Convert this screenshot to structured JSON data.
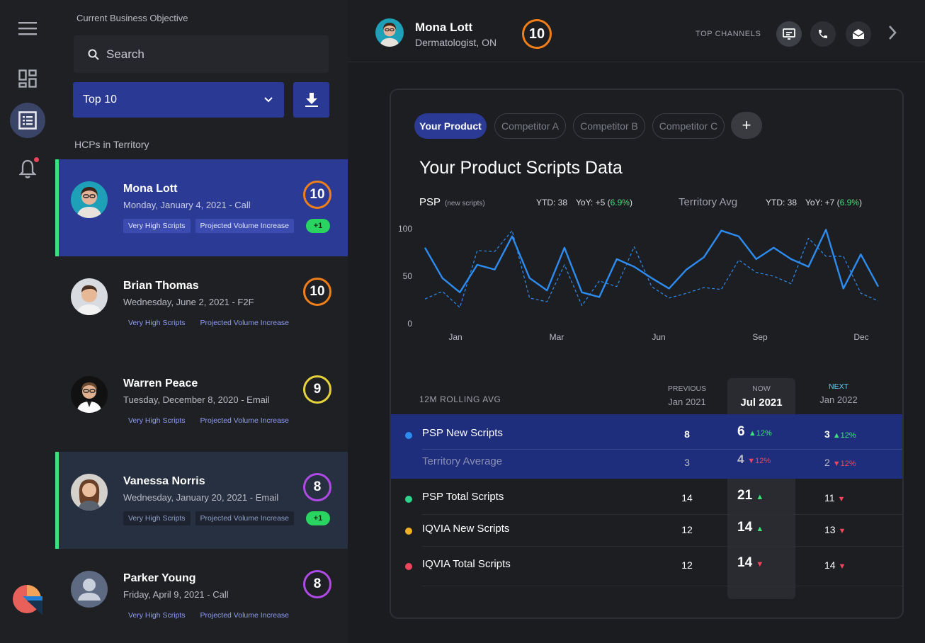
{
  "rail": {
    "icons": [
      "menu-icon",
      "dashboard-icon",
      "list-icon",
      "bell-icon"
    ]
  },
  "list_panel": {
    "objective_label": "Current Business Objective",
    "search_placeholder": "Search",
    "filter_value": "Top 10",
    "section_title": "HCPs in Territory",
    "hcps": [
      {
        "name": "Mona Lott",
        "detail": "Monday, January 4, 2021 - Call",
        "score": "10",
        "score_color": "#f07f1a",
        "tag1": "Very High Scripts",
        "tag2": "Projected Volume Increase",
        "delta": "+1",
        "state": "selected"
      },
      {
        "name": "Brian Thomas",
        "detail": "Wednesday, June 2, 2021 - F2F",
        "score": "10",
        "score_color": "#f07f1a",
        "tag1": "Very High Scripts",
        "tag2": "Projected Volume Increase",
        "delta": "",
        "state": "normal"
      },
      {
        "name": "Warren Peace",
        "detail": "Tuesday, December 8, 2020 - Email",
        "score": "9",
        "score_color": "#e6d23c",
        "tag1": "Very High Scripts",
        "tag2": "Projected Volume Increase",
        "delta": "",
        "state": "normal"
      },
      {
        "name": "Vanessa Norris",
        "detail": "Wednesday, January 20, 2021 - Email",
        "score": "8",
        "score_color": "#b04ae6",
        "tag1": "Very High Scripts",
        "tag2": "Projected Volume Increase",
        "delta": "+1",
        "state": "highlight"
      },
      {
        "name": "Parker Young",
        "detail": "Friday, April 9, 2021 - Call",
        "score": "8",
        "score_color": "#b04ae6",
        "tag1": "Very High Scripts",
        "tag2": "Projected Volume Increase",
        "delta": "",
        "state": "normal"
      }
    ]
  },
  "header": {
    "name": "Mona Lott",
    "specialty": "Dermatologist, ON",
    "score": "10",
    "channels_label": "TOP CHANNELS",
    "channels": [
      "presentation-icon",
      "phone-icon",
      "email-icon"
    ]
  },
  "panel": {
    "tabs": [
      "Your Product",
      "Competitor A",
      "Competitor B",
      "Competitor C"
    ],
    "title": "Your Product Scripts Data",
    "psp_label": "PSP",
    "psp_sub": "(new scripts)",
    "psp_ytd": "YTD: 38",
    "psp_yoy_prefix": "YoY: +5 (",
    "psp_yoy_pct": "6.9%",
    "territory_label": "Territory Avg",
    "terr_ytd": "YTD: 38",
    "terr_yoy_prefix": "YoY: +7 (",
    "terr_yoy_pct": "6.9%",
    "rolling_label": "12M ROLLING AVG",
    "col_prev_key": "PREVIOUS",
    "col_prev_val": "Jan 2021",
    "col_now_key": "NOW",
    "col_now_val": "Jul 2021",
    "col_next_key": "NEXT",
    "col_next_val": "Jan 2022",
    "rows": [
      {
        "label": "PSP New Scripts",
        "color": "#2d8cf0",
        "prev": "8",
        "now": "6",
        "now_chg": "12%",
        "now_dir": "up",
        "next": "3",
        "next_chg": "12%",
        "next_dir": "up"
      },
      {
        "label": "Territory Average",
        "color": "",
        "prev": "3",
        "now": "4",
        "now_chg": "12%",
        "now_dir": "down",
        "next": "2",
        "next_chg": "12%",
        "next_dir": "down"
      },
      {
        "label": "PSP Total Scripts",
        "color": "#2bd48a",
        "prev": "14",
        "now": "21",
        "now_chg": "",
        "now_dir": "up",
        "next": "11",
        "next_chg": "",
        "next_dir": "down"
      },
      {
        "label": "IQVIA New Scripts",
        "color": "#f0b020",
        "prev": "12",
        "now": "14",
        "now_chg": "",
        "now_dir": "up",
        "next": "13",
        "next_chg": "",
        "next_dir": "down"
      },
      {
        "label": "IQVIA Total Scripts",
        "color": "#f0455a",
        "prev": "12",
        "now": "14",
        "now_chg": "",
        "now_dir": "down",
        "next": "14",
        "next_chg": "",
        "next_dir": "down"
      }
    ]
  },
  "chart_data": {
    "type": "line",
    "x_ticks": [
      "Jan",
      "Mar",
      "Jun",
      "Sep",
      "Dec"
    ],
    "y_ticks": [
      "100",
      "50",
      "0"
    ],
    "ylim": [
      0,
      100
    ],
    "series": [
      {
        "name": "PSP",
        "style": "solid",
        "color": "#2d8cf0",
        "values": [
          80,
          48,
          33,
          62,
          57,
          92,
          48,
          35,
          80,
          33,
          28,
          68,
          60,
          48,
          37,
          57,
          70,
          98,
          92,
          68,
          80,
          68,
          60,
          99,
          37,
          73,
          39
        ]
      },
      {
        "name": "Territory Avg",
        "style": "dashed",
        "color": "#2d8cf0",
        "values": [
          26,
          34,
          17,
          77,
          76,
          98,
          27,
          23,
          62,
          19,
          45,
          39,
          81,
          39,
          27,
          32,
          38,
          36,
          67,
          54,
          50,
          42,
          90,
          71,
          71,
          32,
          24
        ]
      }
    ]
  }
}
